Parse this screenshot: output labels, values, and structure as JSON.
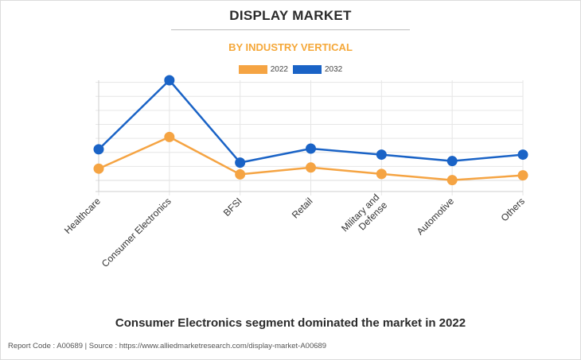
{
  "header": {
    "title": "DISPLAY MARKET",
    "subtitle": "BY INDUSTRY VERTICAL"
  },
  "legend": [
    {
      "label": "2022",
      "color": "#f5a443"
    },
    {
      "label": "2032",
      "color": "#1a63c6"
    }
  ],
  "chart_data": {
    "type": "line",
    "title": "DISPLAY MARKET",
    "subtitle": "BY INDUSTRY VERTICAL",
    "categories": [
      "Healthcare",
      "Consumer Electronics",
      "BFSI",
      "Retail",
      "Military and Defense",
      "Automotive",
      "Others"
    ],
    "series": [
      {
        "name": "2022",
        "color": "#f5a443",
        "values": [
          8.4,
          31,
          4.3,
          9.2,
          4.6,
          0.2,
          3.6
        ]
      },
      {
        "name": "2032",
        "color": "#1a63c6",
        "values": [
          22.2,
          71.5,
          12.7,
          22.7,
          18.4,
          13.8,
          18.4
        ]
      }
    ],
    "ylim": [
      0,
      71.5
    ],
    "y_ticks": [
      0,
      10,
      20,
      30,
      40,
      50,
      60,
      70
    ],
    "grid": true,
    "tick_labels_visible": false,
    "legend_position": "top-center"
  },
  "footer": {
    "caption": "Consumer Electronics segment dominated the market in 2022",
    "source": "Report Code : A00689  |  Source : https://www.alliedmarketresearch.com/display-market-A00689"
  }
}
